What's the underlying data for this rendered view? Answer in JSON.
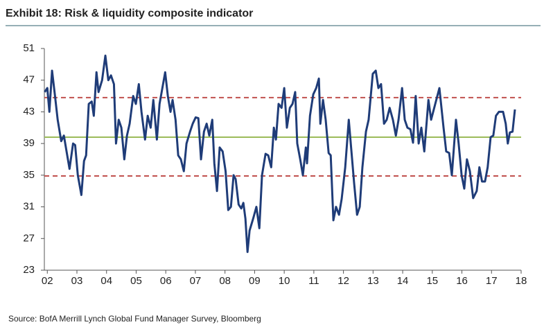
{
  "chart_data": {
    "type": "line",
    "title": "Exhibit 18: Risk & liquidity composite indicator",
    "source": "Source: BofA Merrill Lynch Global Fund Manager Survey, Bloomberg",
    "color": "#1f3c78",
    "x": [
      2001.91,
      2002.0,
      2002.07,
      2002.16,
      2002.26,
      2002.35,
      2002.47,
      2002.56,
      2002.65,
      2002.75,
      2002.87,
      2002.94,
      2003.03,
      2003.15,
      2003.24,
      2003.31,
      2003.4,
      2003.5,
      2003.57,
      2003.66,
      2003.73,
      2003.85,
      2003.96,
      2004.06,
      2004.15,
      2004.25,
      2004.32,
      2004.41,
      2004.5,
      2004.6,
      2004.69,
      2004.78,
      2004.9,
      2004.99,
      2005.09,
      2005.18,
      2005.3,
      2005.39,
      2005.49,
      2005.58,
      2005.7,
      2005.79,
      2005.98,
      2006.07,
      2006.16,
      2006.23,
      2006.33,
      2006.42,
      2006.51,
      2006.61,
      2006.7,
      2006.82,
      2006.91,
      2007.01,
      2007.1,
      2007.19,
      2007.29,
      2007.38,
      2007.47,
      2007.57,
      2007.64,
      2007.73,
      2007.82,
      2007.92,
      2008.02,
      2008.11,
      2008.2,
      2008.29,
      2008.36,
      2008.46,
      2008.55,
      2008.62,
      2008.69,
      2008.76,
      2008.83,
      2008.95,
      2009.06,
      2009.16,
      2009.25,
      2009.37,
      2009.46,
      2009.56,
      2009.65,
      2009.72,
      2009.81,
      2009.91,
      2010.0,
      2010.09,
      2010.19,
      2010.28,
      2010.37,
      2010.44,
      2010.54,
      2010.63,
      2010.73,
      2010.77,
      2010.87,
      2010.98,
      2011.08,
      2011.17,
      2011.22,
      2011.31,
      2011.4,
      2011.5,
      2011.57,
      2011.66,
      2011.75,
      2011.85,
      2011.94,
      2012.06,
      2012.18,
      2012.27,
      2012.36,
      2012.46,
      2012.55,
      2012.64,
      2012.76,
      2012.85,
      2012.99,
      2013.09,
      2013.18,
      2013.27,
      2013.37,
      2013.46,
      2013.56,
      2013.67,
      2013.77,
      2013.86,
      2013.98,
      2014.07,
      2014.16,
      2014.26,
      2014.35,
      2014.44,
      2014.54,
      2014.63,
      2014.73,
      2014.87,
      2014.96,
      2015.1,
      2015.24,
      2015.38,
      2015.47,
      2015.57,
      2015.66,
      2015.8,
      2015.89,
      2015.99,
      2016.08,
      2016.17,
      2016.27,
      2016.38,
      2016.5,
      2016.59,
      2016.68,
      2016.78,
      2016.87,
      2016.97,
      2017.06,
      2017.15,
      2017.25,
      2017.39,
      2017.48,
      2017.55,
      2017.62,
      2017.71,
      2017.79
    ],
    "values": [
      45.5,
      46,
      43,
      48.2,
      45,
      42,
      39.3,
      40,
      38,
      35.8,
      39,
      38.8,
      35,
      32.5,
      36.8,
      37.5,
      44,
      44.3,
      42.5,
      48,
      45.5,
      47,
      50.1,
      47,
      47.6,
      46.5,
      39,
      42,
      41,
      37,
      40,
      41.5,
      45,
      44,
      46.5,
      43,
      39.5,
      42.5,
      41,
      44.5,
      39.5,
      44,
      48,
      45,
      43,
      44.5,
      42,
      37.5,
      37,
      35.5,
      39,
      40.5,
      41.5,
      42.3,
      42.2,
      37,
      40.5,
      41.5,
      40,
      42,
      36.5,
      33,
      38.5,
      38,
      35.5,
      30.6,
      31,
      35,
      34.5,
      31.3,
      30.8,
      31.5,
      29.5,
      25.3,
      28,
      29.5,
      31,
      28.3,
      35,
      37.7,
      37.5,
      36,
      41,
      39.5,
      44,
      43.5,
      46,
      41,
      43.5,
      44,
      45.5,
      39,
      37,
      35,
      38.5,
      36.5,
      42.5,
      45.2,
      46,
      47.2,
      41.5,
      44.5,
      42,
      37.8,
      37.5,
      29.3,
      31,
      30,
      32,
      36,
      42,
      38,
      34,
      30,
      31,
      36,
      40.5,
      42,
      47.8,
      48.2,
      46,
      46.5,
      41.5,
      42,
      43.5,
      42,
      40,
      42,
      46,
      42,
      41,
      40.8,
      39.1,
      45,
      39,
      41,
      38,
      44.5,
      42,
      44,
      46,
      41,
      38,
      37.8,
      35,
      42,
      39,
      35,
      33.3,
      37,
      35.5,
      32.1,
      33,
      36,
      34.2,
      34.2,
      36,
      39.8,
      40,
      42.5,
      43,
      43,
      41.5,
      39,
      40.4,
      40.5,
      43.3
    ],
    "xlim": [
      2001.9,
      2018
    ],
    "xticks": [
      {
        "value": 2002,
        "label": "02"
      },
      {
        "value": 2003,
        "label": "03"
      },
      {
        "value": 2004,
        "label": "04"
      },
      {
        "value": 2005,
        "label": "05"
      },
      {
        "value": 2006,
        "label": "06"
      },
      {
        "value": 2007,
        "label": "07"
      },
      {
        "value": 2008,
        "label": "08"
      },
      {
        "value": 2009,
        "label": "09"
      },
      {
        "value": 2010,
        "label": "10"
      },
      {
        "value": 2011,
        "label": "11"
      },
      {
        "value": 2012,
        "label": "12"
      },
      {
        "value": 2013,
        "label": "13"
      },
      {
        "value": 2014,
        "label": "14"
      },
      {
        "value": 2015,
        "label": "15"
      },
      {
        "value": 2016,
        "label": "16"
      },
      {
        "value": 2017,
        "label": "17"
      },
      {
        "value": 2018,
        "label": "18"
      }
    ],
    "ylim": [
      23,
      51
    ],
    "yticks": [
      23,
      27,
      31,
      35,
      39,
      43,
      47,
      51
    ],
    "reference_lines": [
      {
        "value": 44.8,
        "color": "#c0504d",
        "style": "dashed"
      },
      {
        "value": 39.8,
        "color": "#9bbb59",
        "style": "solid"
      },
      {
        "value": 34.9,
        "color": "#c0504d",
        "style": "dashed"
      }
    ]
  }
}
